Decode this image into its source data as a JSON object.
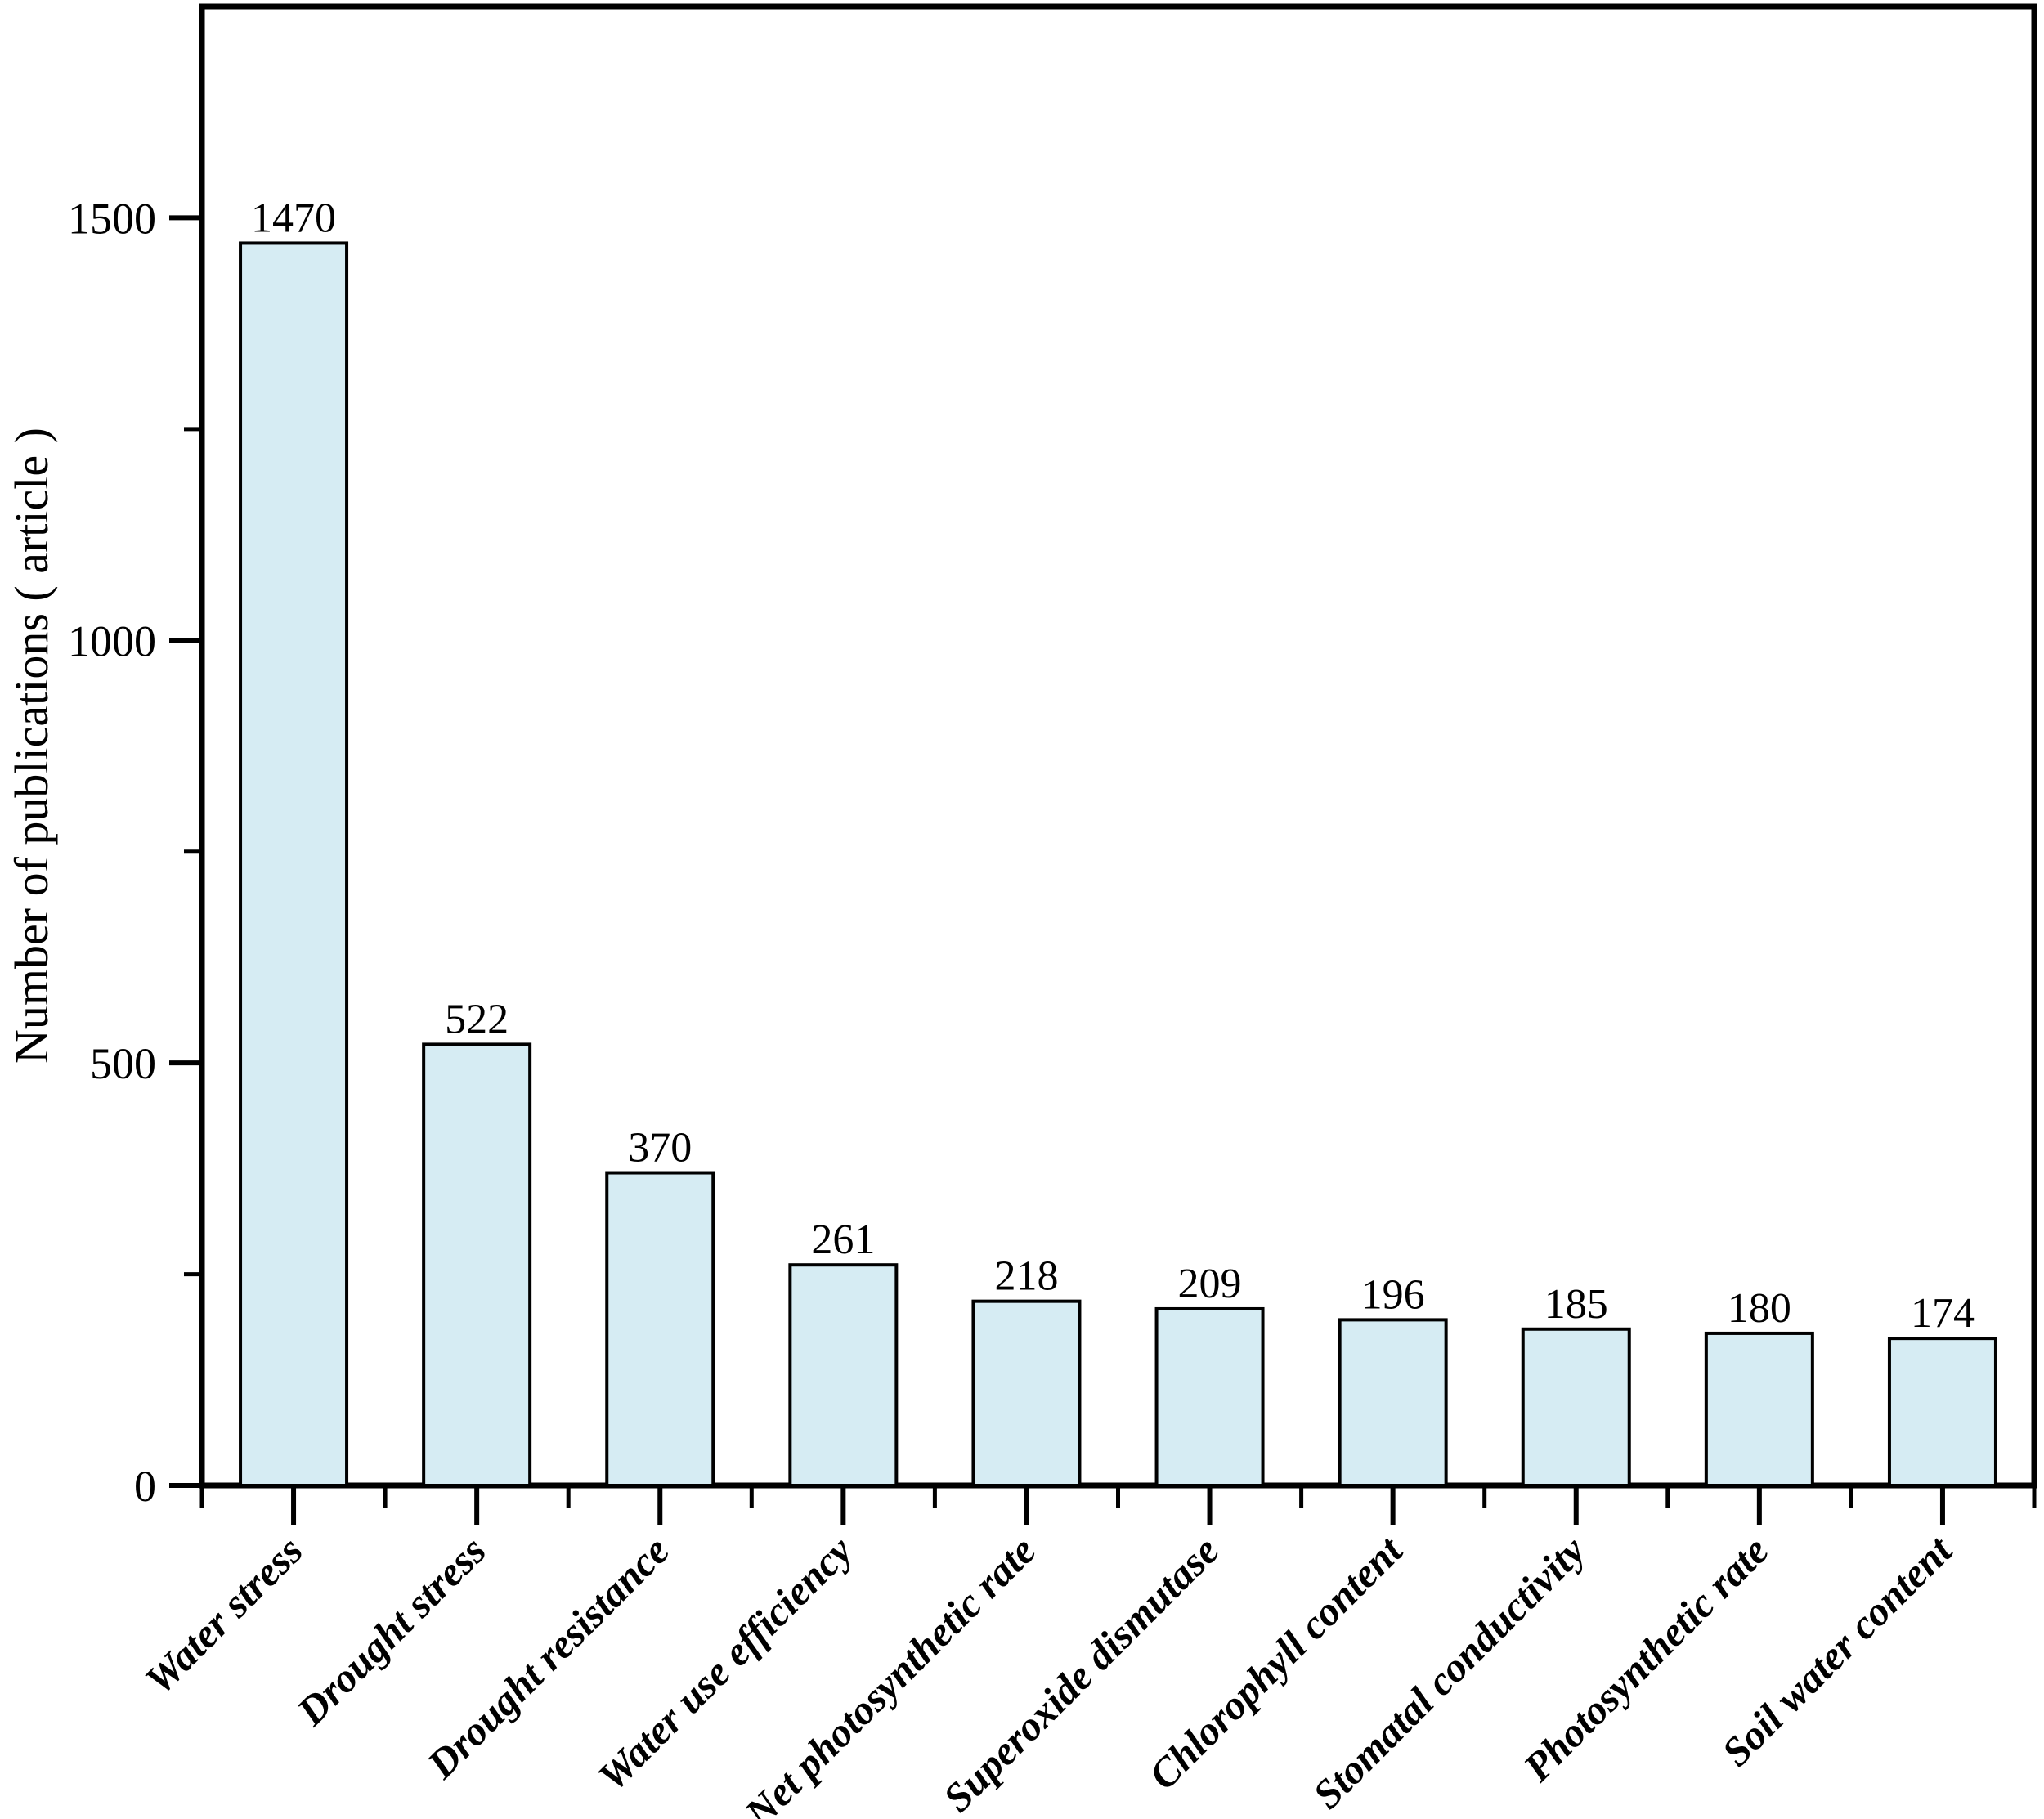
{
  "chart_data": {
    "type": "bar",
    "title": "",
    "categories": [
      "Water stress",
      "Drought stress",
      "Drought resistance",
      "Water use efficiency",
      "Net photosynthetic rate",
      "Superoxide dismutase",
      "Chlorophyll content",
      "Stomatal conductivity",
      "Photosynthetic rate",
      "Soil water content"
    ],
    "values": [
      1470,
      522,
      370,
      261,
      218,
      209,
      196,
      185,
      180,
      174
    ],
    "value_labels": [
      "1470",
      "522",
      "370",
      "261",
      "218",
      "209",
      "196",
      "185",
      "180",
      "174"
    ],
    "xlabel": "",
    "ylabel": "Number of publications ( article )",
    "ylim": [
      0,
      1750
    ],
    "yticks_major": [
      0,
      500,
      1000,
      1500
    ],
    "ytick_labels": [
      "0",
      "500",
      "1000",
      "1500"
    ],
    "yticks_minor": [
      250,
      750,
      1250
    ],
    "grid": "off",
    "legend": "none",
    "frame": "full-box",
    "colors": {
      "bar_fill": "#d6ecf3",
      "bar_stroke": "#000000",
      "axis": "#000000",
      "text": "#000000",
      "background": "#ffffff"
    }
  }
}
